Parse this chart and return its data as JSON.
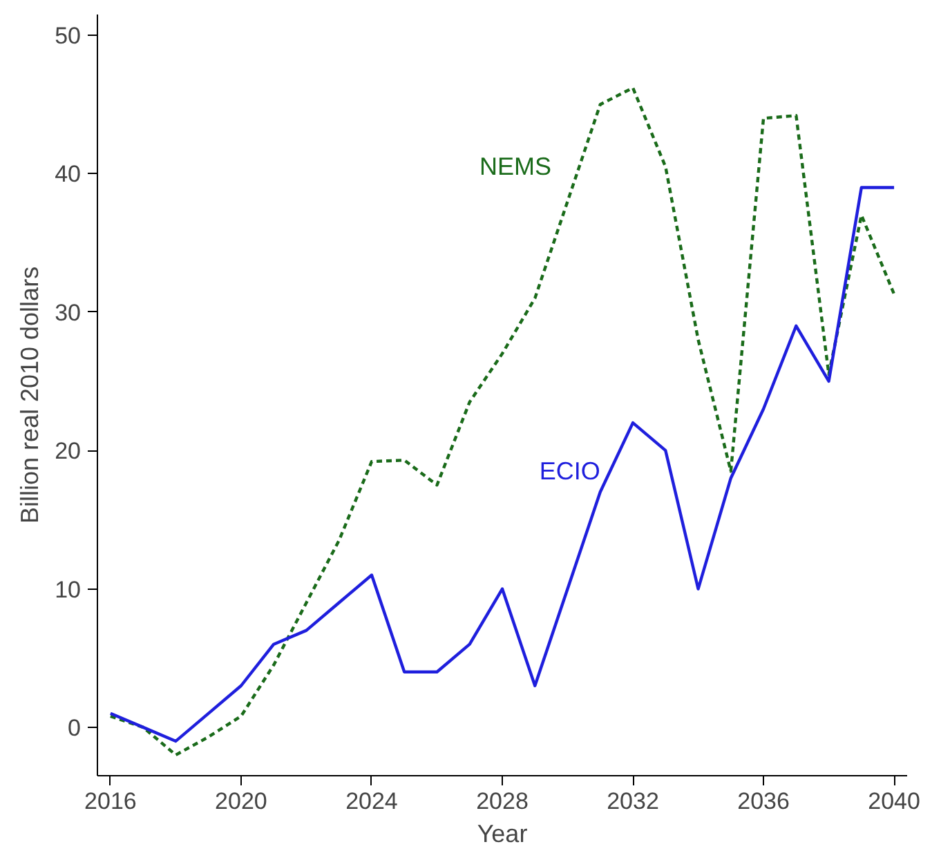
{
  "chart_data": {
    "type": "line",
    "xlabel": "Year",
    "ylabel": "Billion real 2010 dollars",
    "x": [
      2016,
      2017,
      2018,
      2019,
      2020,
      2021,
      2022,
      2023,
      2024,
      2025,
      2026,
      2027,
      2028,
      2029,
      2030,
      2031,
      2032,
      2033,
      2034,
      2035,
      2036,
      2037,
      2038,
      2039,
      2040
    ],
    "series": [
      {
        "name": "NEMS",
        "color": "#1a6b1a",
        "line_style": "dashed",
        "values": [
          0.8,
          0,
          -2,
          -0.7,
          0.8,
          4.5,
          9,
          13.5,
          19.2,
          19.3,
          17.5,
          23.5,
          27,
          31,
          38,
          45,
          46.2,
          40.5,
          28,
          18.5,
          44,
          44.2,
          25.5,
          37,
          31.3
        ]
      },
      {
        "name": "ECIO",
        "color": "#1f1fdd",
        "line_style": "solid",
        "values": [
          1,
          0,
          -1,
          1,
          3,
          6,
          7,
          9,
          11,
          4,
          4,
          6,
          10,
          3,
          10,
          17,
          22,
          20,
          10,
          18,
          23,
          29,
          25,
          39,
          39
        ]
      }
    ],
    "xlim": [
      2015.6,
      2040.4
    ],
    "ylim": [
      -3.5,
      51.5
    ],
    "xticks": [
      2016,
      2020,
      2024,
      2028,
      2032,
      2036,
      2040
    ],
    "yticks": [
      0,
      10,
      20,
      30,
      40,
      50
    ],
    "grid": false
  }
}
